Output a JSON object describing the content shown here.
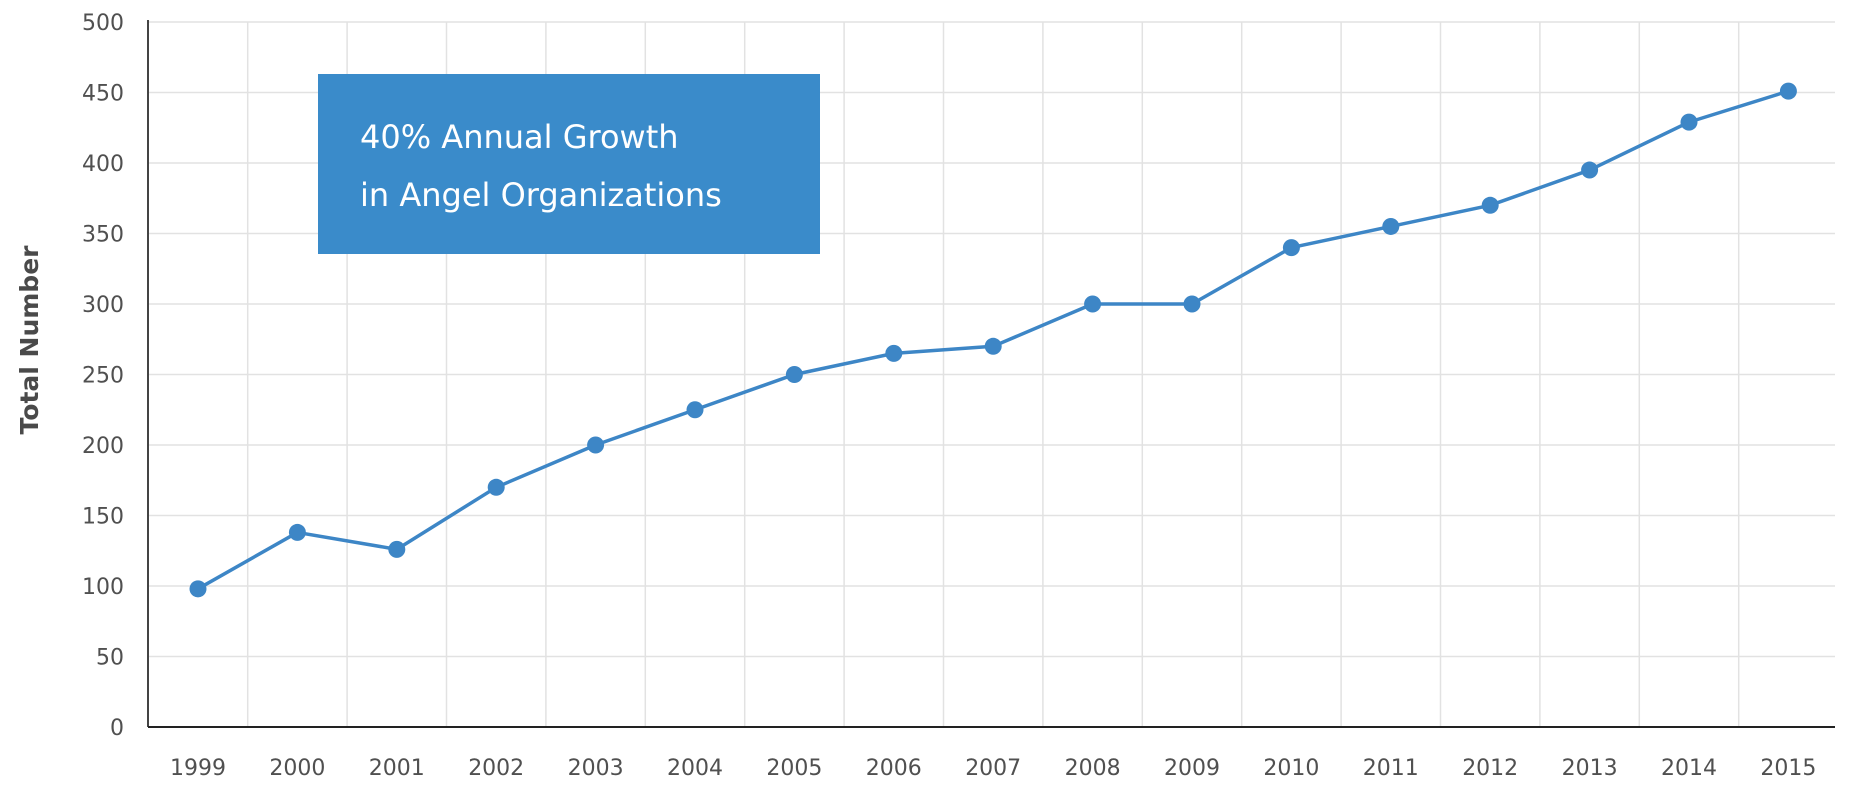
{
  "chart_data": {
    "type": "line",
    "title": "",
    "xlabel": "",
    "ylabel": "Total Number",
    "categories": [
      "1999",
      "2000",
      "2001",
      "2002",
      "2003",
      "2004",
      "2005",
      "2006",
      "2007",
      "2008",
      "2009",
      "2010",
      "2011",
      "2012",
      "2013",
      "2014",
      "2015"
    ],
    "series": [
      {
        "values": [
          98,
          138,
          126,
          170,
          200,
          225,
          250,
          265,
          270,
          300,
          300,
          340,
          355,
          370,
          395,
          429,
          451
        ]
      }
    ],
    "ylim": [
      0,
      500
    ],
    "yticks": [
      0,
      50,
      100,
      150,
      200,
      250,
      300,
      350,
      400,
      450,
      500
    ],
    "grid": true,
    "legend": "none",
    "colors": {
      "line": "#3d86c6",
      "callout_bg": "#3a8bca",
      "grid": "#e2e2e2"
    },
    "annotation": {
      "lines": [
        "40% Annual Growth",
        "in Angel Organizations"
      ]
    }
  }
}
